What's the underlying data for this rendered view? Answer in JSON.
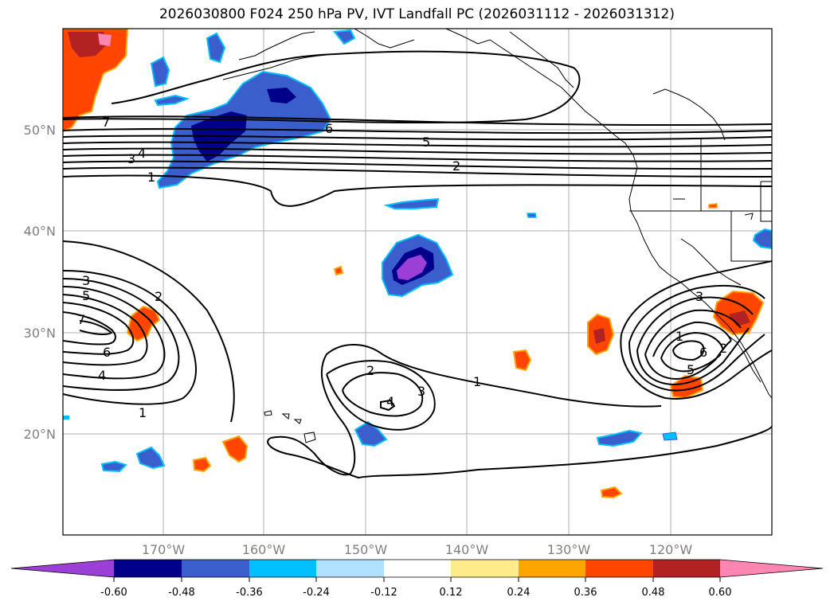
{
  "title": "2026030800 F024 250 hPa PV, IVT Landfall PC (2026031112 - 2026031312)",
  "map": {
    "lat_labels": [
      "50°N",
      "40°N",
      "30°N",
      "20°N"
    ],
    "lon_labels": [
      "170°W",
      "160°W",
      "150°W",
      "140°W",
      "130°W",
      "120°W"
    ],
    "contour_labels": [
      "7",
      "6",
      "5",
      "2",
      "4",
      "3",
      "1",
      "3",
      "5",
      "7",
      "6",
      "4",
      "2",
      "1",
      "2",
      "3",
      "4",
      "1",
      "3",
      "1",
      "6",
      "2",
      "5"
    ]
  },
  "colorbar": {
    "ticks": [
      "-0.60",
      "-0.48",
      "-0.36",
      "-0.24",
      "-0.12",
      "0.12",
      "0.24",
      "0.36",
      "0.48",
      "0.60"
    ],
    "colors": [
      "#9b3fd6",
      "#00008b",
      "#3a5fcd",
      "#00bfff",
      "#afe1ff",
      "#ffffff",
      "#ffeb8a",
      "#ffa500",
      "#ff4500",
      "#b22222",
      "#ff85b3"
    ]
  }
}
